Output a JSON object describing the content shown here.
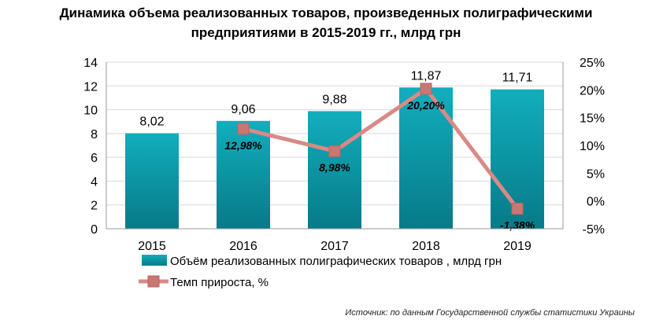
{
  "title_line1": "Динамика объема реализованных товаров, произведенных полиграфическими",
  "title_line2": "предприятиями в 2015-2019 гг., млрд грн",
  "source": "Источник: по данным Государственной службы статистики Украины",
  "colors": {
    "bar": "#0b98a8",
    "bar_dark": "#087e8c",
    "line": "#d98a86",
    "marker": "#c87773",
    "grid": "#d9d9d9"
  },
  "chart_data": {
    "type": "bar",
    "categories": [
      "2015",
      "2016",
      "2017",
      "2018",
      "2019"
    ],
    "series": [
      {
        "name": "Объём реализованных полиграфических товаров , млрд грн",
        "type": "bar",
        "axis": "left",
        "values": [
          8.02,
          9.06,
          9.88,
          11.87,
          11.71
        ],
        "labels": [
          "8,02",
          "9,06",
          "9,88",
          "11,87",
          "11,71"
        ]
      },
      {
        "name": "Темп прироста, %",
        "type": "line",
        "axis": "right",
        "values": [
          null,
          12.98,
          8.98,
          20.2,
          -1.38
        ],
        "labels": [
          "",
          "12,98%",
          "8,98%",
          "20,20%",
          "-1,38%"
        ]
      }
    ],
    "ylim_left": [
      0,
      14
    ],
    "yticks_left": [
      "0",
      "2",
      "4",
      "6",
      "8",
      "10",
      "12",
      "14"
    ],
    "ylim_right": [
      -5,
      25
    ],
    "yticks_right": [
      "-5%",
      "0%",
      "5%",
      "10%",
      "15%",
      "20%",
      "25%"
    ],
    "legend_position": "bottom-left"
  }
}
